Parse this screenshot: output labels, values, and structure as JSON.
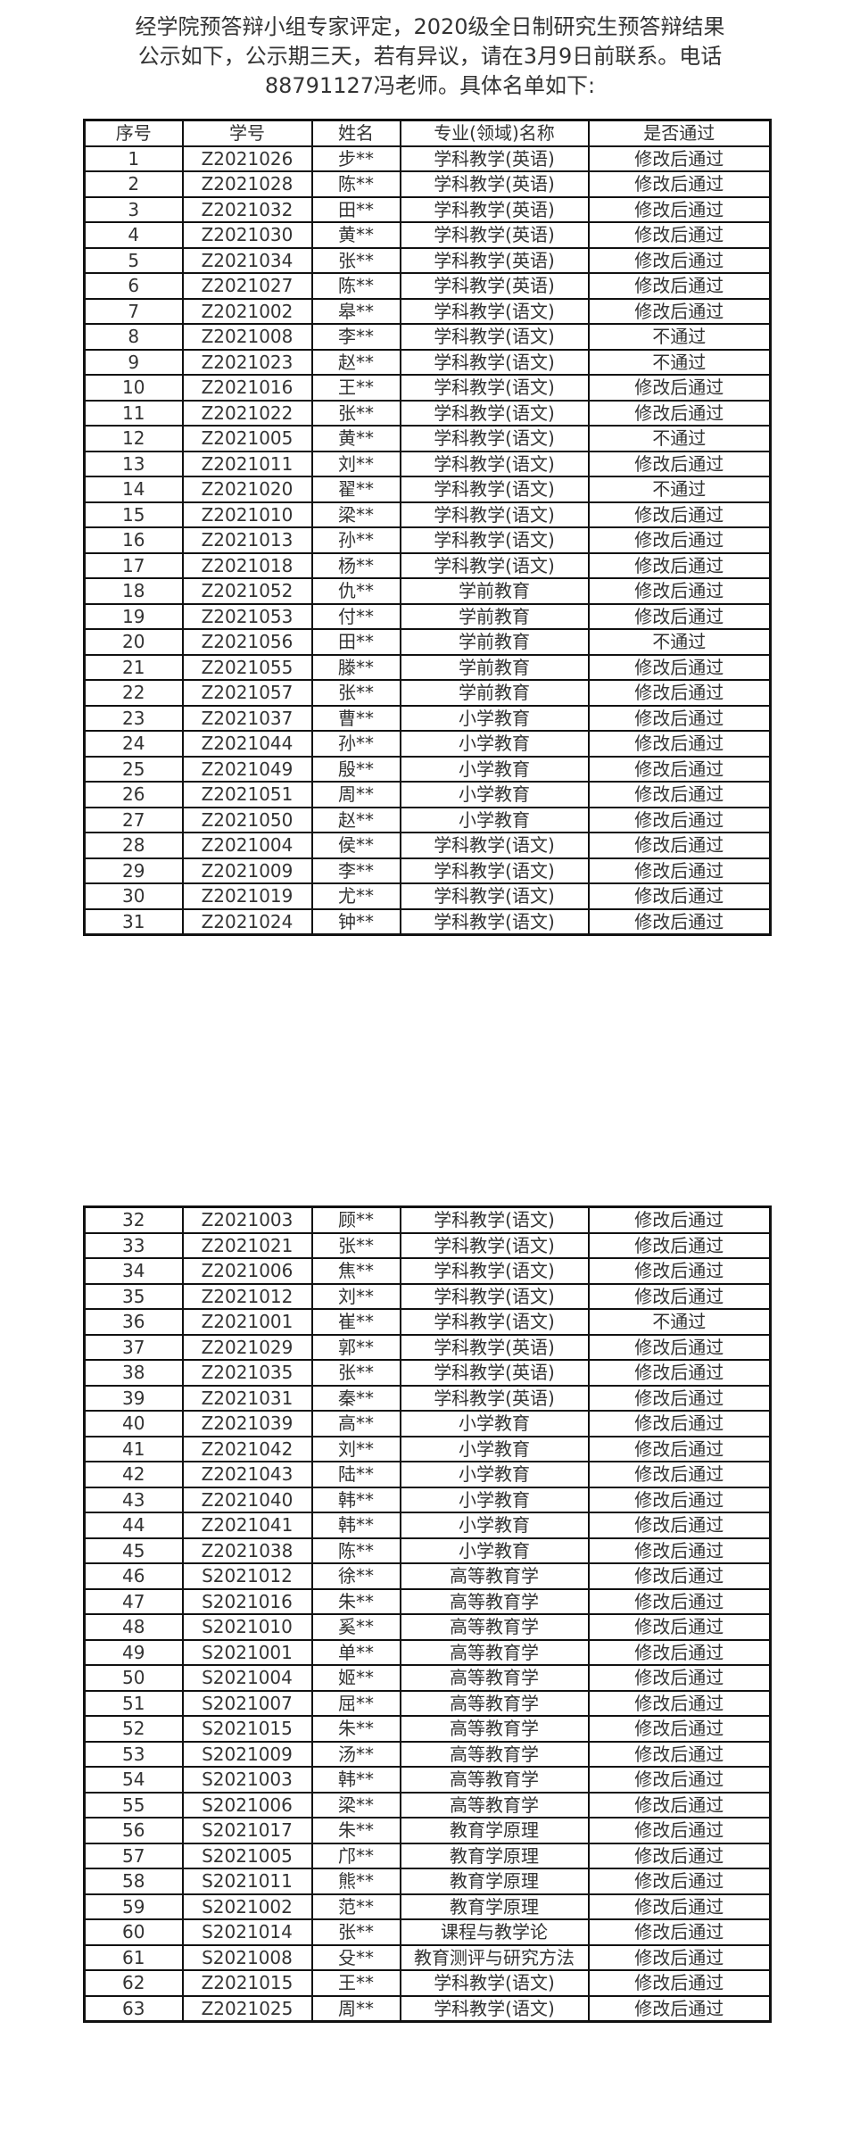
{
  "notice": {
    "line1": "经学院预答辩小组专家评定，2020级全日制研究生预答辩结果",
    "line2": "公示如下，公示期三天，若有异议，请在3月9日前联系。电话",
    "line3": "88791127冯老师。具体名单如下:"
  },
  "table": {
    "headers": [
      "序号",
      "学号",
      "姓名",
      "专业(领域)名称",
      "是否通过"
    ],
    "rows_part1": [
      [
        "1",
        "Z2021026",
        "步**",
        "学科教学(英语)",
        "修改后通过"
      ],
      [
        "2",
        "Z2021028",
        "陈**",
        "学科教学(英语)",
        "修改后通过"
      ],
      [
        "3",
        "Z2021032",
        "田**",
        "学科教学(英语)",
        "修改后通过"
      ],
      [
        "4",
        "Z2021030",
        "黄**",
        "学科教学(英语)",
        "修改后通过"
      ],
      [
        "5",
        "Z2021034",
        "张**",
        "学科教学(英语)",
        "修改后通过"
      ],
      [
        "6",
        "Z2021027",
        "陈**",
        "学科教学(英语)",
        "修改后通过"
      ],
      [
        "7",
        "Z2021002",
        "皋**",
        "学科教学(语文)",
        "修改后通过"
      ],
      [
        "8",
        "Z2021008",
        "李**",
        "学科教学(语文)",
        "不通过"
      ],
      [
        "9",
        "Z2021023",
        "赵**",
        "学科教学(语文)",
        "不通过"
      ],
      [
        "10",
        "Z2021016",
        "王**",
        "学科教学(语文)",
        "修改后通过"
      ],
      [
        "11",
        "Z2021022",
        "张**",
        "学科教学(语文)",
        "修改后通过"
      ],
      [
        "12",
        "Z2021005",
        "黄**",
        "学科教学(语文)",
        "不通过"
      ],
      [
        "13",
        "Z2021011",
        "刘**",
        "学科教学(语文)",
        "修改后通过"
      ],
      [
        "14",
        "Z2021020",
        "翟**",
        "学科教学(语文)",
        "不通过"
      ],
      [
        "15",
        "Z2021010",
        "梁**",
        "学科教学(语文)",
        "修改后通过"
      ],
      [
        "16",
        "Z2021013",
        "孙**",
        "学科教学(语文)",
        "修改后通过"
      ],
      [
        "17",
        "Z2021018",
        "杨**",
        "学科教学(语文)",
        "修改后通过"
      ],
      [
        "18",
        "Z2021052",
        "仇**",
        "学前教育",
        "修改后通过"
      ],
      [
        "19",
        "Z2021053",
        "付**",
        "学前教育",
        "修改后通过"
      ],
      [
        "20",
        "Z2021056",
        "田**",
        "学前教育",
        "不通过"
      ],
      [
        "21",
        "Z2021055",
        "滕**",
        "学前教育",
        "修改后通过"
      ],
      [
        "22",
        "Z2021057",
        "张**",
        "学前教育",
        "修改后通过"
      ],
      [
        "23",
        "Z2021037",
        "曹**",
        "小学教育",
        "修改后通过"
      ],
      [
        "24",
        "Z2021044",
        "孙**",
        "小学教育",
        "修改后通过"
      ],
      [
        "25",
        "Z2021049",
        "殷**",
        "小学教育",
        "修改后通过"
      ],
      [
        "26",
        "Z2021051",
        "周**",
        "小学教育",
        "修改后通过"
      ],
      [
        "27",
        "Z2021050",
        "赵**",
        "小学教育",
        "修改后通过"
      ],
      [
        "28",
        "Z2021004",
        "侯**",
        "学科教学(语文)",
        "修改后通过"
      ],
      [
        "29",
        "Z2021009",
        "李**",
        "学科教学(语文)",
        "修改后通过"
      ],
      [
        "30",
        "Z2021019",
        "尤**",
        "学科教学(语文)",
        "修改后通过"
      ],
      [
        "31",
        "Z2021024",
        "钟**",
        "学科教学(语文)",
        "修改后通过"
      ]
    ],
    "rows_part2": [
      [
        "32",
        "Z2021003",
        "顾**",
        "学科教学(语文)",
        "修改后通过"
      ],
      [
        "33",
        "Z2021021",
        "张**",
        "学科教学(语文)",
        "修改后通过"
      ],
      [
        "34",
        "Z2021006",
        "焦**",
        "学科教学(语文)",
        "修改后通过"
      ],
      [
        "35",
        "Z2021012",
        "刘**",
        "学科教学(语文)",
        "修改后通过"
      ],
      [
        "36",
        "Z2021001",
        "崔**",
        "学科教学(语文)",
        "不通过"
      ],
      [
        "37",
        "Z2021029",
        "郭**",
        "学科教学(英语)",
        "修改后通过"
      ],
      [
        "38",
        "Z2021035",
        "张**",
        "学科教学(英语)",
        "修改后通过"
      ],
      [
        "39",
        "Z2021031",
        "秦**",
        "学科教学(英语)",
        "修改后通过"
      ],
      [
        "40",
        "Z2021039",
        "高**",
        "小学教育",
        "修改后通过"
      ],
      [
        "41",
        "Z2021042",
        "刘**",
        "小学教育",
        "修改后通过"
      ],
      [
        "42",
        "Z2021043",
        "陆**",
        "小学教育",
        "修改后通过"
      ],
      [
        "43",
        "Z2021040",
        "韩**",
        "小学教育",
        "修改后通过"
      ],
      [
        "44",
        "Z2021041",
        "韩**",
        "小学教育",
        "修改后通过"
      ],
      [
        "45",
        "Z2021038",
        "陈**",
        "小学教育",
        "修改后通过"
      ],
      [
        "46",
        "S2021012",
        "徐**",
        "高等教育学",
        "修改后通过"
      ],
      [
        "47",
        "S2021016",
        "朱**",
        "高等教育学",
        "修改后通过"
      ],
      [
        "48",
        "S2021010",
        "奚**",
        "高等教育学",
        "修改后通过"
      ],
      [
        "49",
        "S2021001",
        "单**",
        "高等教育学",
        "修改后通过"
      ],
      [
        "50",
        "S2021004",
        "姬**",
        "高等教育学",
        "修改后通过"
      ],
      [
        "51",
        "S2021007",
        "屈**",
        "高等教育学",
        "修改后通过"
      ],
      [
        "52",
        "S2021015",
        "朱**",
        "高等教育学",
        "修改后通过"
      ],
      [
        "53",
        "S2021009",
        "汤**",
        "高等教育学",
        "修改后通过"
      ],
      [
        "54",
        "S2021003",
        "韩**",
        "高等教育学",
        "修改后通过"
      ],
      [
        "55",
        "S2021006",
        "梁**",
        "高等教育学",
        "修改后通过"
      ],
      [
        "56",
        "S2021017",
        "朱**",
        "教育学原理",
        "修改后通过"
      ],
      [
        "57",
        "S2021005",
        "邝**",
        "教育学原理",
        "修改后通过"
      ],
      [
        "58",
        "S2021011",
        "熊**",
        "教育学原理",
        "修改后通过"
      ],
      [
        "59",
        "S2021002",
        "范**",
        "教育学原理",
        "修改后通过"
      ],
      [
        "60",
        "S2021014",
        "张**",
        "课程与教学论",
        "修改后通过"
      ],
      [
        "61",
        "S2021008",
        "殳**",
        "教育测评与研究方法",
        "修改后通过"
      ],
      [
        "62",
        "Z2021015",
        "王**",
        "学科教学(语文)",
        "修改后通过"
      ],
      [
        "63",
        "Z2021025",
        "周**",
        "学科教学(语文)",
        "修改后通过"
      ]
    ]
  }
}
